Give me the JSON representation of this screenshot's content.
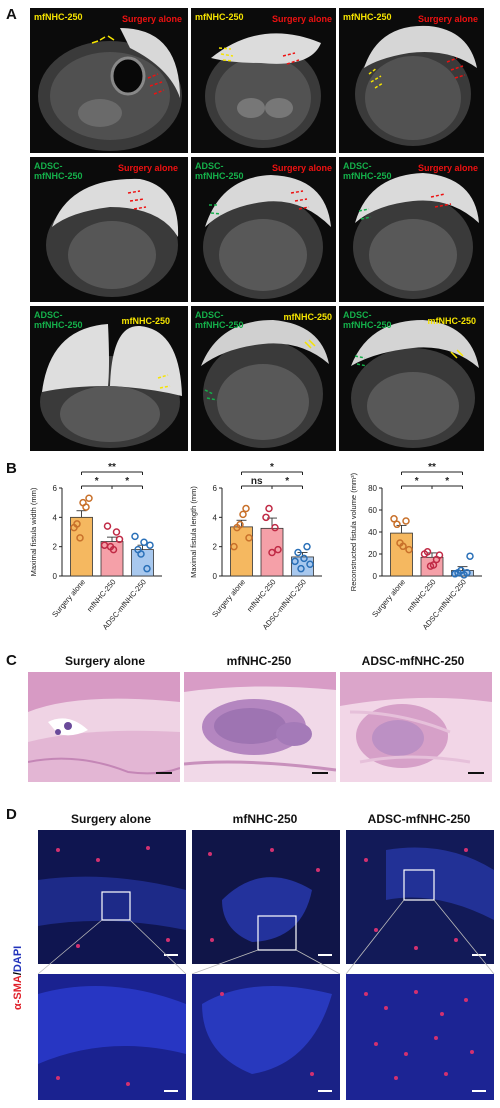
{
  "panel_labels": {
    "a": "A",
    "b": "B",
    "c": "C",
    "d": "D"
  },
  "mri_labels": {
    "mfnhc": "mfNHC-250",
    "surgery": "Surgery alone",
    "adsc1": "ADSC-",
    "adsc2": "mfNHC-250"
  },
  "stain_label": {
    "part1": "α-SMA",
    "sep": "/",
    "part2": "DAPI"
  },
  "group_names": [
    "Surgery alone",
    "mfNHC-250",
    "ADSC-mfNHC-250"
  ],
  "colors": {
    "surgery": "#f5b860",
    "mfnhc": "#f5a0a8",
    "adsc": "#a8c8ee",
    "surgery_dot": "#c8702a",
    "mfnhc_dot": "#c02a45",
    "adsc_dot": "#2a70b8"
  },
  "chart_data": [
    {
      "type": "bar",
      "categories": [
        "Surgery alone",
        "mfNHC-250",
        "ADSC-mfNHC-250"
      ],
      "values": [
        4.0,
        2.35,
        1.8
      ],
      "errors": [
        0.45,
        0.3,
        0.3
      ],
      "points": [
        [
          3.3,
          3.55,
          2.6,
          5.0,
          4.7,
          5.3
        ],
        [
          2.1,
          3.4,
          2.0,
          1.8,
          3.0,
          2.5
        ],
        [
          2.7,
          1.8,
          1.5,
          2.3,
          0.5,
          2.1
        ]
      ],
      "ylabel": "Maximal fistula width (mm)",
      "ylim": [
        0,
        6
      ],
      "yticks": [
        "0",
        "2",
        "4",
        "6"
      ],
      "significance": [
        {
          "from": 0,
          "to": 2,
          "label": "**"
        },
        {
          "from": 0,
          "to": 1,
          "label": "*"
        },
        {
          "from": 1,
          "to": 2,
          "label": "*"
        }
      ]
    },
    {
      "type": "bar",
      "categories": [
        "Surgery alone",
        "mfNHC-250",
        "ADSC-mfNHC-250"
      ],
      "values": [
        3.35,
        3.25,
        1.3
      ],
      "errors": [
        0.45,
        0.7,
        0.3
      ],
      "points": [
        [
          2.0,
          3.3,
          3.5,
          4.2,
          4.6,
          2.6
        ],
        [
          4.0,
          4.6,
          1.6,
          3.3,
          1.8
        ],
        [
          1.0,
          1.6,
          0.5,
          1.2,
          2.0,
          0.8
        ]
      ],
      "ylabel": "Maximal fistula length (mm)",
      "ylim": [
        0,
        6
      ],
      "yticks": [
        "0",
        "2",
        "4",
        "6"
      ],
      "significance": [
        {
          "from": 0,
          "to": 2,
          "label": "*"
        },
        {
          "from": 0,
          "to": 1,
          "label": "ns"
        },
        {
          "from": 1,
          "to": 2,
          "label": "*"
        }
      ]
    },
    {
      "type": "bar",
      "categories": [
        "Surgery alone",
        "mfNHC-250",
        "ADSC-mfNHC-250"
      ],
      "values": [
        39,
        17,
        5
      ],
      "errors": [
        7,
        4,
        3.5
      ],
      "points": [
        [
          52,
          47,
          30,
          27,
          50,
          24
        ],
        [
          20,
          22,
          9,
          10,
          15,
          19
        ],
        [
          2,
          3,
          5,
          1,
          3,
          18
        ]
      ],
      "ylabel": "Reconstructed fistula volume (mm³)",
      "ylim": [
        0,
        80
      ],
      "yticks": [
        "0",
        "20",
        "40",
        "60",
        "80"
      ],
      "significance": [
        {
          "from": 0,
          "to": 2,
          "label": "**"
        },
        {
          "from": 0,
          "to": 1,
          "label": "*"
        },
        {
          "from": 1,
          "to": 2,
          "label": "*"
        }
      ]
    }
  ]
}
